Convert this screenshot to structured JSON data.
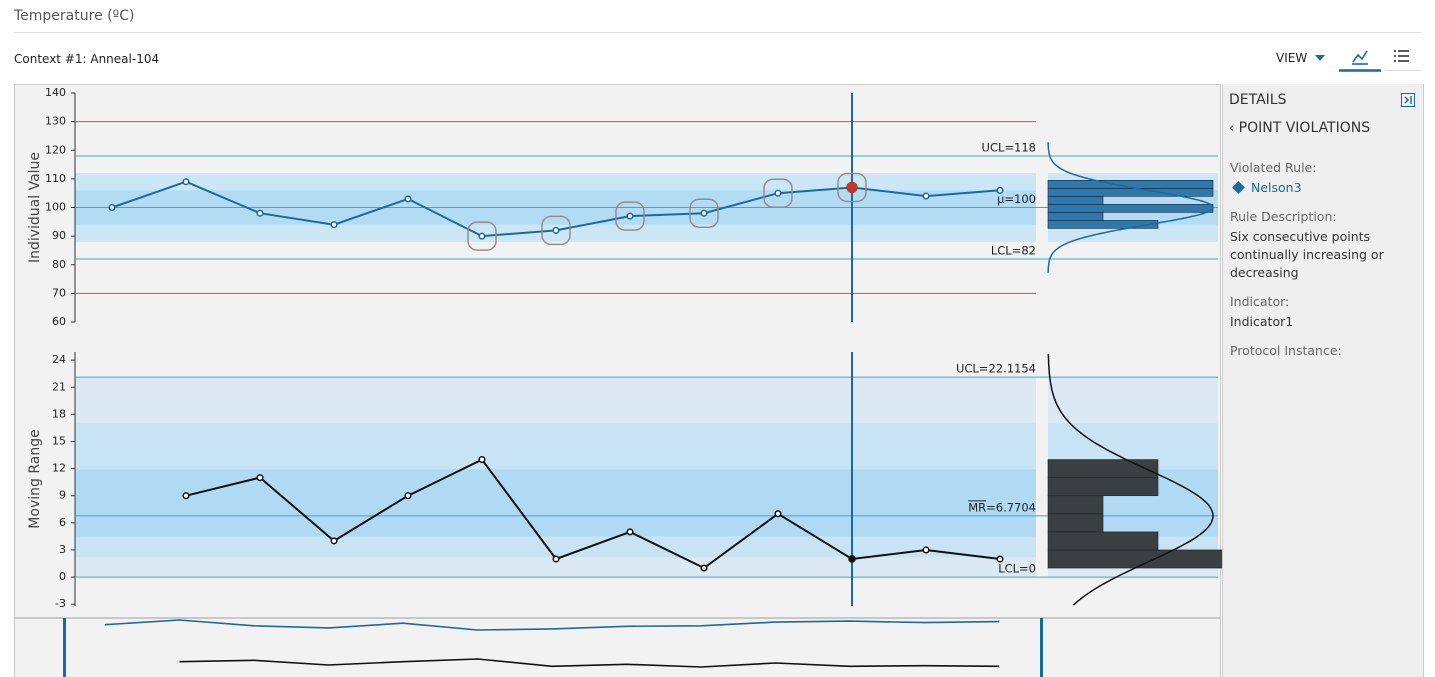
{
  "header": {
    "title": "Temperature (ºC)",
    "context": "Context #1: Anneal-104",
    "view_menu": "VIEW"
  },
  "chart_data": [
    {
      "type": "line",
      "y_label": "Individual Value",
      "ylim": [
        60,
        140
      ],
      "yticks": [
        60,
        70,
        80,
        90,
        100,
        110,
        120,
        130,
        140
      ],
      "color": "#1a6aa0",
      "values": [
        100,
        109,
        98,
        94,
        103,
        90,
        92,
        97,
        98,
        105,
        107,
        104,
        106
      ],
      "zones": [
        {
          "range": [
            88,
            112
          ],
          "color": "#cbe6f5"
        },
        {
          "range": [
            94,
            106
          ],
          "color": "#b2dcf3"
        }
      ],
      "spec_limits": {
        "values": [
          130,
          70
        ],
        "color": "#c8553d"
      },
      "control_lines": [
        {
          "label": "UCL=118",
          "value": 118
        },
        {
          "label": "μ=100",
          "value": 100
        },
        {
          "label": "LCL=82",
          "value": 82
        }
      ],
      "control_color": "#3aa6dc",
      "highlighted_points": [
        5,
        6,
        7,
        8,
        9,
        10
      ],
      "selected_point": 10,
      "selected_color": "#c0392b",
      "histogram": {
        "bins": [
          92.7,
          95.5,
          98.3,
          101.1,
          103.9,
          106.7,
          109.5
        ],
        "counts": [
          2,
          1,
          3,
          1,
          3,
          3
        ],
        "color": "#2b79ad",
        "normal_curve": {
          "mean": 100,
          "sd": 6
        }
      }
    },
    {
      "type": "line",
      "y_label": "Moving Range",
      "ylim": [
        -3.2,
        24.9
      ],
      "yticks": [
        -3,
        0,
        3,
        6,
        9,
        12,
        15,
        18,
        21,
        24
      ],
      "color": "#111111",
      "values": [
        null,
        9,
        11,
        4,
        9,
        13,
        2,
        5,
        1,
        7,
        2,
        3,
        2
      ],
      "zones": [
        {
          "range": [
            0,
            22.1154
          ],
          "color": "#dce9f2"
        },
        {
          "range": [
            2.2,
            17
          ],
          "color": "#c8e3f4"
        },
        {
          "range": [
            4.5,
            11.9
          ],
          "color": "#b0daf3"
        }
      ],
      "control_lines": [
        {
          "label": "UCL=22.1154",
          "value": 22.1154
        },
        {
          "label": "MR=6.7704",
          "value": 6.7704,
          "overline_chars": 2
        },
        {
          "label": "LCL=0",
          "value": 0
        }
      ],
      "control_color": "#3aa6dc",
      "highlighted_points": [],
      "selected_point": 10,
      "selected_color": "#111111",
      "histogram": {
        "bins": [
          1,
          3,
          5,
          7,
          9,
          11,
          13
        ],
        "counts": [
          4,
          2,
          1,
          1,
          2,
          2
        ],
        "color": "#3a3f42",
        "normal_curve": {
          "mean": 6.7704,
          "sd": 5.1
        }
      }
    }
  ],
  "details": {
    "title": "DETAILS",
    "section": "POINT VIOLATIONS",
    "fields": [
      {
        "label": "Violated Rule:",
        "value": "Nelson3",
        "link": true
      },
      {
        "label": "Rule Description:",
        "value": "Six consecutive points continually increasing or decreasing"
      },
      {
        "label": "Indicator:",
        "value": "Indicator1"
      },
      {
        "label": "Protocol Instance:",
        "value": ""
      }
    ]
  }
}
